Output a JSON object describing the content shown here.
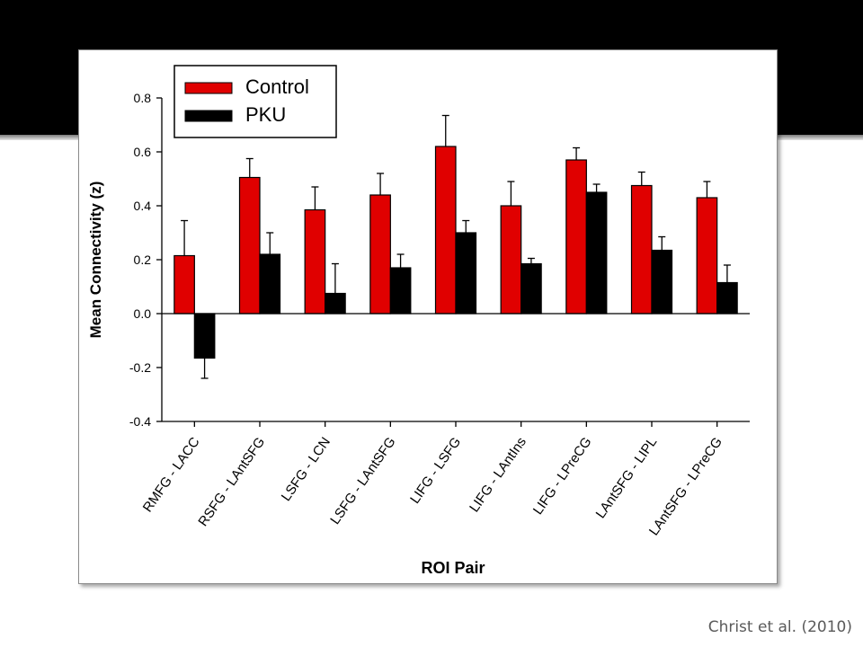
{
  "citation": "Christ et al. (2010)",
  "chart_data": {
    "type": "bar",
    "xlabel": "ROI Pair",
    "ylabel": "Mean Connectivity (z)",
    "ylim": [
      -0.4,
      0.8
    ],
    "yticks": [
      "-0.4",
      "-0.2",
      "0.0",
      "0.2",
      "0.4",
      "0.6",
      "0.8"
    ],
    "grid": false,
    "legend_position": "top-left",
    "categories": [
      "RMFG - LACC",
      "RSFG - LAntSFG",
      "LSFG - LCN",
      "LSFG - LAntSFG",
      "LIFG - LSFG",
      "LIFG - LAntIns",
      "LIFG - LPreCG",
      "LAntSFG - LIPL",
      "LAntSFG - LPreCG"
    ],
    "series": [
      {
        "name": "Control",
        "color": "#e00000",
        "values": [
          0.215,
          0.505,
          0.385,
          0.44,
          0.62,
          0.4,
          0.57,
          0.475,
          0.43
        ],
        "errors": [
          0.13,
          0.07,
          0.085,
          0.08,
          0.115,
          0.09,
          0.045,
          0.05,
          0.06
        ]
      },
      {
        "name": "PKU",
        "color": "#000000",
        "values": [
          -0.165,
          0.22,
          0.075,
          0.17,
          0.3,
          0.185,
          0.45,
          0.235,
          0.115
        ],
        "errors": [
          0.075,
          0.08,
          0.11,
          0.05,
          0.045,
          0.02,
          0.03,
          0.05,
          0.065
        ]
      }
    ]
  }
}
